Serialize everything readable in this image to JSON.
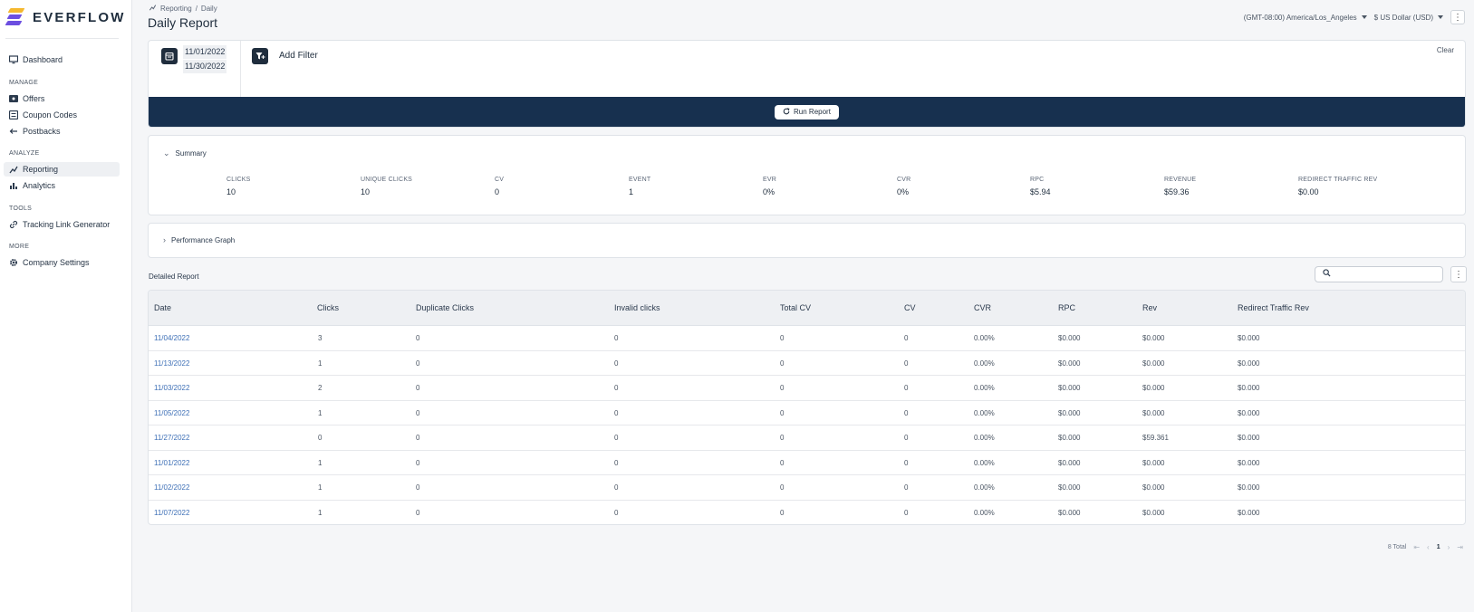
{
  "brand": {
    "name": "EVERFLOW",
    "colors": {
      "yellow": "#f5b82e",
      "purple": "#6c4ee0",
      "navy": "#1f2d3d",
      "run_bar": "#17304f",
      "link": "#3d6fb6"
    }
  },
  "sidebar": {
    "dashboard": {
      "label": "Dashboard",
      "icon": "monitor-icon"
    },
    "sections": {
      "manage": "MANAGE",
      "analyze": "ANALYZE",
      "tools": "TOOLS",
      "more": "MORE"
    },
    "manage_items": [
      {
        "label": "Offers",
        "icon": "offers-icon"
      },
      {
        "label": "Coupon Codes",
        "icon": "coupon-icon"
      },
      {
        "label": "Postbacks",
        "icon": "postback-icon"
      }
    ],
    "analyze_items": [
      {
        "label": "Reporting",
        "icon": "reporting-icon",
        "active": true
      },
      {
        "label": "Analytics",
        "icon": "analytics-icon"
      }
    ],
    "tools_items": [
      {
        "label": "Tracking Link Generator",
        "icon": "link-icon"
      }
    ],
    "more_items": [
      {
        "label": "Company Settings",
        "icon": "gear-icon"
      }
    ]
  },
  "header": {
    "breadcrumb": [
      "Reporting",
      "Daily"
    ],
    "breadcrumb_sep": "/",
    "title": "Daily Report",
    "timezone": "(GMT-08:00) America/Los_Angeles",
    "currency": "$ US Dollar (USD)"
  },
  "filters": {
    "date_start": "11/01/2022",
    "date_end": "11/30/2022",
    "add_filter": "Add Filter",
    "clear": "Clear",
    "run_report": "Run Report"
  },
  "summary": {
    "title": "Summary",
    "metrics": [
      {
        "label": "CLICKS",
        "value": "10"
      },
      {
        "label": "UNIQUE CLICKS",
        "value": "10"
      },
      {
        "label": "CV",
        "value": "0"
      },
      {
        "label": "EVENT",
        "value": "1"
      },
      {
        "label": "EVR",
        "value": "0%"
      },
      {
        "label": "CVR",
        "value": "0%"
      },
      {
        "label": "RPC",
        "value": "$5.94"
      },
      {
        "label": "REVENUE",
        "value": "$59.36"
      },
      {
        "label": "REDIRECT TRAFFIC REV",
        "value": "$0.00"
      }
    ]
  },
  "performance_graph": {
    "title": "Performance Graph"
  },
  "detailed": {
    "title": "Detailed Report",
    "search_placeholder": "",
    "columns": [
      "Date",
      "Clicks",
      "Duplicate Clicks",
      "Invalid clicks",
      "Total CV",
      "CV",
      "CVR",
      "RPC",
      "Rev",
      "Redirect Traffic Rev"
    ],
    "rows": [
      [
        "11/04/2022",
        "3",
        "0",
        "0",
        "0",
        "0",
        "0.00%",
        "$0.000",
        "$0.000",
        "$0.000"
      ],
      [
        "11/13/2022",
        "1",
        "0",
        "0",
        "0",
        "0",
        "0.00%",
        "$0.000",
        "$0.000",
        "$0.000"
      ],
      [
        "11/03/2022",
        "2",
        "0",
        "0",
        "0",
        "0",
        "0.00%",
        "$0.000",
        "$0.000",
        "$0.000"
      ],
      [
        "11/05/2022",
        "1",
        "0",
        "0",
        "0",
        "0",
        "0.00%",
        "$0.000",
        "$0.000",
        "$0.000"
      ],
      [
        "11/27/2022",
        "0",
        "0",
        "0",
        "0",
        "0",
        "0.00%",
        "$0.000",
        "$59.361",
        "$0.000"
      ],
      [
        "11/01/2022",
        "1",
        "0",
        "0",
        "0",
        "0",
        "0.00%",
        "$0.000",
        "$0.000",
        "$0.000"
      ],
      [
        "11/02/2022",
        "1",
        "0",
        "0",
        "0",
        "0",
        "0.00%",
        "$0.000",
        "$0.000",
        "$0.000"
      ],
      [
        "11/07/2022",
        "1",
        "0",
        "0",
        "0",
        "0",
        "0.00%",
        "$0.000",
        "$0.000",
        "$0.000"
      ]
    ]
  },
  "pagination": {
    "total": "8 Total",
    "current_page": "1"
  }
}
